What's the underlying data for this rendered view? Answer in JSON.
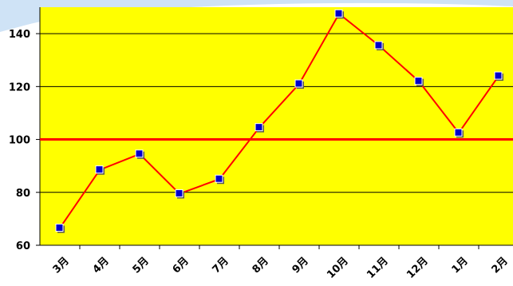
{
  "chart_data": {
    "type": "line",
    "categories": [
      "3月",
      "4月",
      "5月",
      "6月",
      "7月",
      "8月",
      "9月",
      "10月",
      "11月",
      "12月",
      "1月",
      "2月"
    ],
    "series": [
      {
        "values": [
          66.5,
          88.5,
          94.5,
          79.5,
          85,
          104.5,
          121,
          147.5,
          135.5,
          122,
          102.5,
          124
        ]
      }
    ],
    "ylim": [
      60,
      150
    ],
    "yticks": [
      60,
      80,
      100,
      120,
      140
    ],
    "reference_line": 100,
    "grid": true,
    "colors": {
      "plot_background": "#ffff00",
      "line": "#ff0000",
      "marker": "#0000cc",
      "reference_line": "#ff0000",
      "gridline": "#000000"
    }
  }
}
